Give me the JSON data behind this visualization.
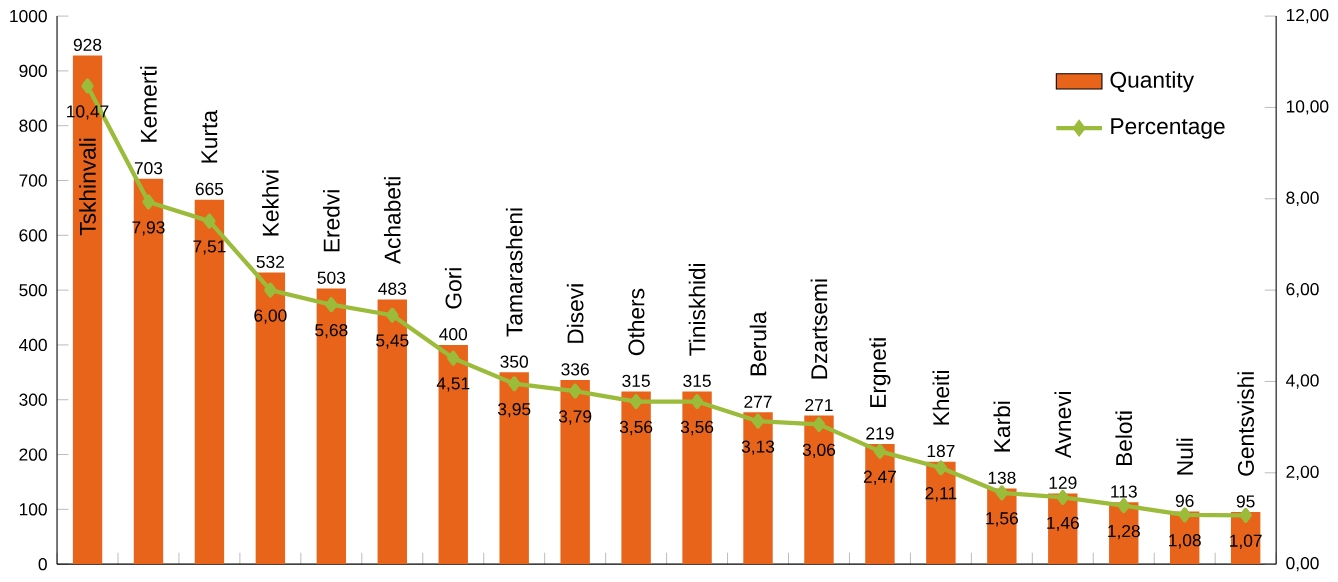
{
  "chart_data": {
    "type": "bar",
    "categories": [
      "Tskhinvali",
      "Kemerti",
      "Kurta",
      "Kekhvi",
      "Eredvi",
      "Achabeti",
      "Gori",
      "Tamarasheni",
      "Disevi",
      "Others",
      "Tiniskhidi",
      "Berula",
      "Dzartsemi",
      "Ergneti",
      "Kheiti",
      "Karbi",
      "Avnevi",
      "Beloti",
      "Nuli",
      "Gentsvishi"
    ],
    "series": [
      {
        "name": "Quantity",
        "color": "#e8641b",
        "values": [
          928,
          703,
          665,
          532,
          503,
          483,
          400,
          350,
          336,
          315,
          315,
          277,
          271,
          219,
          187,
          138,
          129,
          113,
          96,
          95
        ],
        "value_labels": [
          "928",
          "703",
          "665",
          "532",
          "503",
          "483",
          "400",
          "350",
          "336",
          "315",
          "315",
          "277",
          "271",
          "219",
          "187",
          "138",
          "129",
          "113",
          "96",
          "95"
        ]
      },
      {
        "name": "Percentage",
        "type": "line",
        "axis": "y2",
        "color": "#9bbb3b",
        "values": [
          10.47,
          7.93,
          7.51,
          6.0,
          5.68,
          5.45,
          4.51,
          3.95,
          3.79,
          3.56,
          3.56,
          3.13,
          3.06,
          2.47,
          2.11,
          1.56,
          1.46,
          1.28,
          1.08,
          1.07
        ],
        "value_labels": [
          "10,47",
          "7,93",
          "7,51",
          "6,00",
          "5,68",
          "5,45",
          "4,51",
          "3,95",
          "3,79",
          "3,56",
          "3,56",
          "3,13",
          "3,06",
          "2,47",
          "2,11",
          "1,56",
          "1,46",
          "1,28",
          "1,08",
          "1,07"
        ]
      }
    ],
    "ylim": [
      0,
      1000
    ],
    "yticks": [
      0,
      100,
      200,
      300,
      400,
      500,
      600,
      700,
      800,
      900,
      1000
    ],
    "y2lim": [
      0,
      12
    ],
    "y2ticks": [
      {
        "value": 0,
        "label": "0,00"
      },
      {
        "value": 2,
        "label": "2,00"
      },
      {
        "value": 4,
        "label": "4,00"
      },
      {
        "value": 6,
        "label": "6,00"
      },
      {
        "value": 8,
        "label": "8,00"
      },
      {
        "value": 10,
        "label": "10,00"
      },
      {
        "value": 12,
        "label": "12,00"
      }
    ],
    "legend": "top right",
    "marker": "diamond",
    "grid": false
  }
}
